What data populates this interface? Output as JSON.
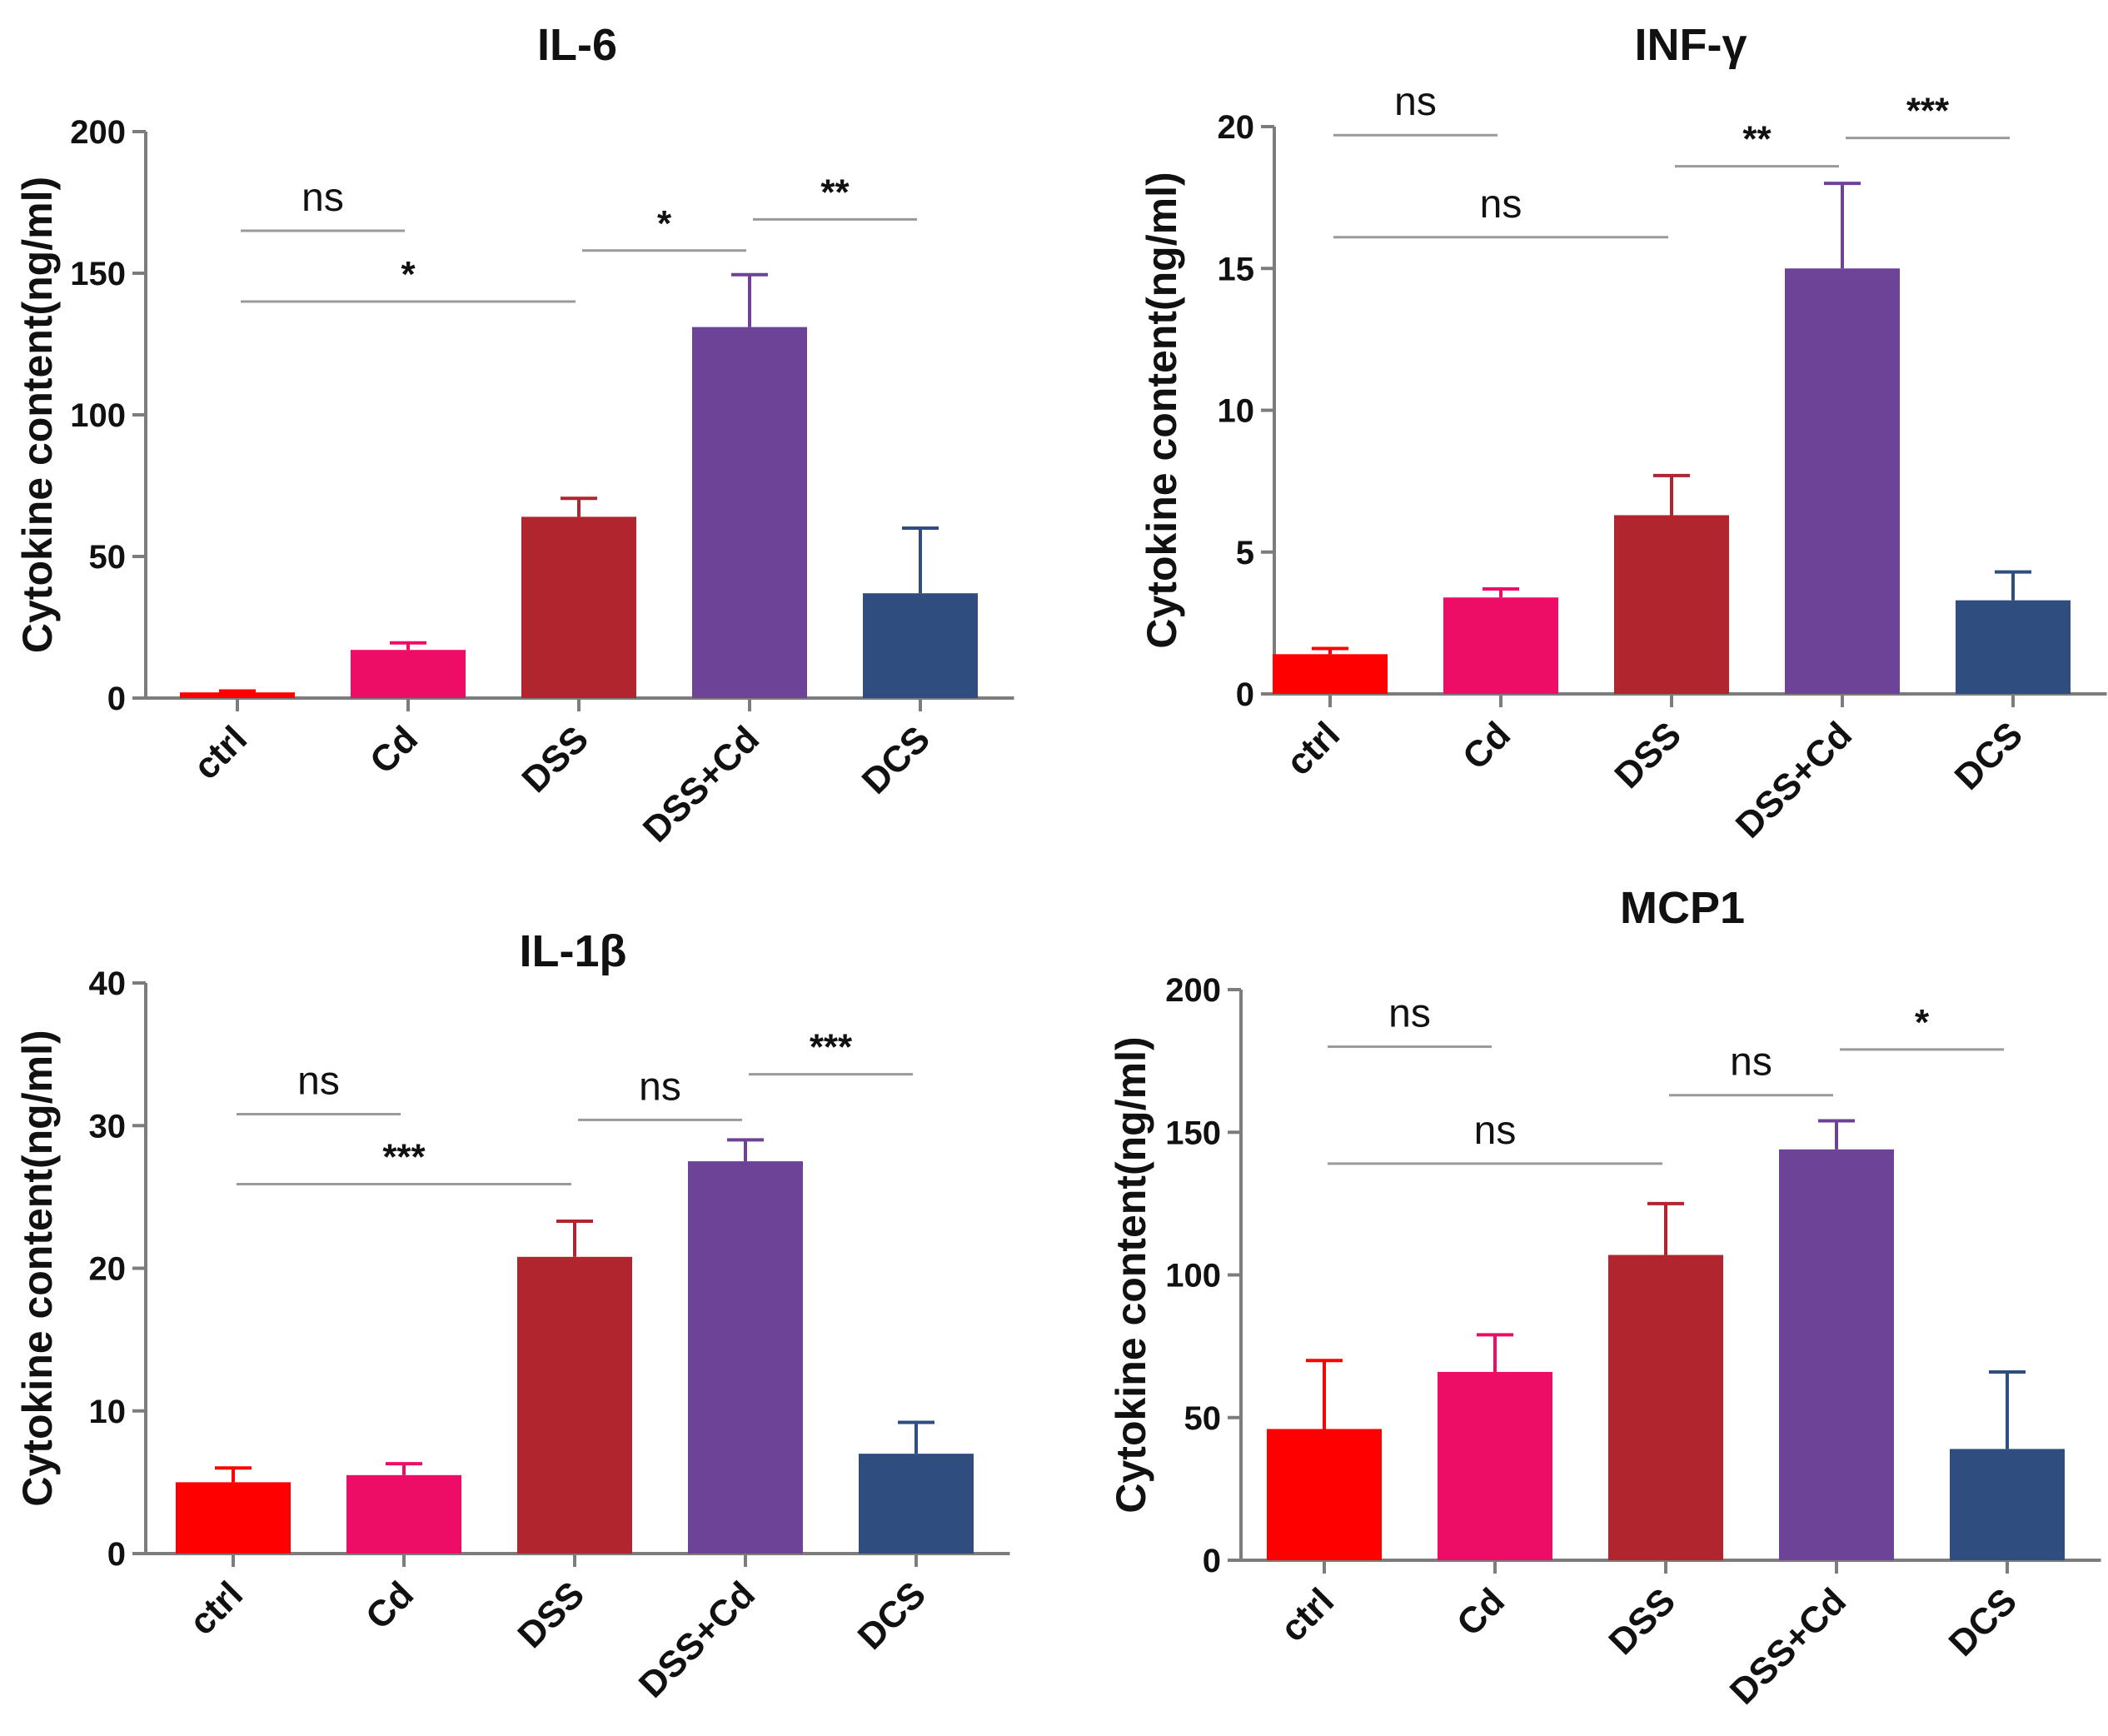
{
  "chart_data": [
    {
      "type": "bar",
      "title": "IL-6",
      "ylabel": "Cytokine content(ng/ml)",
      "xlabel": "",
      "ylim": [
        0,
        200
      ],
      "yticks": [
        0,
        50,
        100,
        150,
        200
      ],
      "categories": [
        "ctrl",
        "Cd",
        "DSS",
        "DSS+Cd",
        "DCS"
      ],
      "values": [
        2,
        17,
        64,
        131,
        37
      ],
      "errors": [
        0.5,
        2.5,
        6.5,
        18.5,
        23
      ],
      "colors": [
        "#ff0000",
        "#ee0d66",
        "#b0252e",
        "#6d4398",
        "#2f4d7f"
      ],
      "significance": [
        {
          "from": 0,
          "to": 1,
          "y": 165,
          "label": "ns"
        },
        {
          "from": 0,
          "to": 2,
          "y": 140,
          "label": "*"
        },
        {
          "from": 2,
          "to": 3,
          "y": 158,
          "label": "*"
        },
        {
          "from": 3,
          "to": 4,
          "y": 169,
          "label": "**"
        }
      ]
    },
    {
      "type": "bar",
      "title": "INF-γ",
      "ylabel": "Cytokine content(ng/ml)",
      "xlabel": "",
      "ylim": [
        0,
        20
      ],
      "yticks": [
        0,
        5,
        10,
        15,
        20
      ],
      "categories": [
        "ctrl",
        "Cd",
        "DSS",
        "DSS+Cd",
        "DCS"
      ],
      "values": [
        1.4,
        3.4,
        6.3,
        15.0,
        3.3
      ],
      "errors": [
        0.2,
        0.3,
        1.4,
        3.0,
        1.0
      ],
      "colors": [
        "#ff0000",
        "#ee0d66",
        "#b0252e",
        "#6d4398",
        "#2f4d7f"
      ],
      "significance": [
        {
          "from": 0,
          "to": 1,
          "y": 19.7,
          "label": "ns"
        },
        {
          "from": 0,
          "to": 2,
          "y": 16.1,
          "label": "ns"
        },
        {
          "from": 2,
          "to": 3,
          "y": 18.6,
          "label": "**"
        },
        {
          "from": 3,
          "to": 4,
          "y": 19.6,
          "label": "***"
        }
      ]
    },
    {
      "type": "bar",
      "title": "IL-1β",
      "ylabel": "Cytokine content(ng/ml)",
      "xlabel": "",
      "ylim": [
        0,
        40
      ],
      "yticks": [
        0,
        10,
        20,
        30,
        40
      ],
      "categories": [
        "ctrl",
        "Cd",
        "DSS",
        "DSS+Cd",
        "DCS"
      ],
      "values": [
        5.0,
        5.5,
        20.8,
        27.5,
        7.0
      ],
      "errors": [
        1.0,
        0.8,
        2.5,
        1.5,
        2.2
      ],
      "colors": [
        "#ff0000",
        "#ee0d66",
        "#b0252e",
        "#6d4398",
        "#2f4d7f"
      ],
      "significance": [
        {
          "from": 0,
          "to": 1,
          "y": 30.8,
          "label": "ns"
        },
        {
          "from": 0,
          "to": 2,
          "y": 25.9,
          "label": "***"
        },
        {
          "from": 2,
          "to": 3,
          "y": 30.4,
          "label": "ns"
        },
        {
          "from": 3,
          "to": 4,
          "y": 33.6,
          "label": "***"
        }
      ]
    },
    {
      "type": "bar",
      "title": "MCP1",
      "ylabel": "Cytokine content(ng/ml)",
      "xlabel": "",
      "ylim": [
        0,
        200
      ],
      "yticks": [
        0,
        50,
        100,
        150,
        200
      ],
      "categories": [
        "ctrl",
        "Cd",
        "DSS",
        "DSS+Cd",
        "DCS"
      ],
      "values": [
        46,
        66,
        107,
        144,
        39
      ],
      "errors": [
        24,
        13,
        18,
        10,
        27
      ],
      "colors": [
        "#ff0000",
        "#ee0d66",
        "#b0252e",
        "#6d4398",
        "#2f4d7f"
      ],
      "significance": [
        {
          "from": 0,
          "to": 1,
          "y": 180,
          "label": "ns"
        },
        {
          "from": 0,
          "to": 2,
          "y": 139,
          "label": "ns"
        },
        {
          "from": 2,
          "to": 3,
          "y": 163,
          "label": "ns"
        },
        {
          "from": 3,
          "to": 4,
          "y": 179,
          "label": "*"
        }
      ]
    }
  ]
}
